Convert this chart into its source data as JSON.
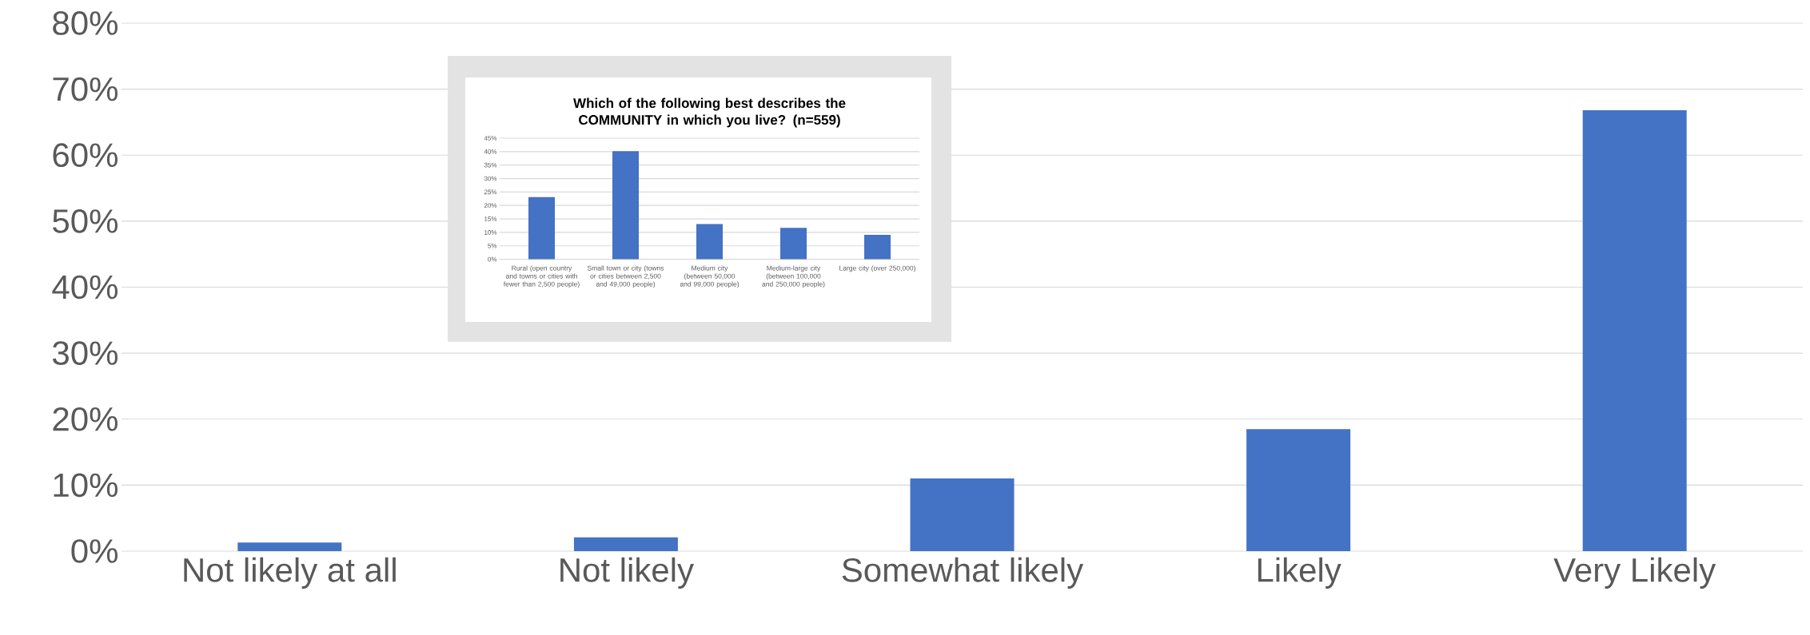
{
  "chart_data": [
    {
      "type": "bar",
      "categories": [
        "Not likely at all",
        "Not likely",
        "Somewhat likely",
        "Likely",
        "Very Likely"
      ],
      "values": [
        1.3,
        2.1,
        11.0,
        18.5,
        66.8
      ],
      "color": "#4472c4",
      "ylim": [
        0,
        80
      ],
      "yticks": [
        {
          "value": 0,
          "label": "0%"
        },
        {
          "value": 10,
          "label": "10%"
        },
        {
          "value": 20,
          "label": "20%"
        },
        {
          "value": 30,
          "label": "30%"
        },
        {
          "value": 40,
          "label": "40%"
        },
        {
          "value": 50,
          "label": "50%"
        },
        {
          "value": 60,
          "label": "60%"
        },
        {
          "value": 70,
          "label": "70%"
        },
        {
          "value": 80,
          "label": "80%"
        }
      ],
      "grid": "y"
    },
    {
      "type": "bar",
      "title": "Which of the following best describes the COMMUNITY in which you live? (n=559)",
      "categories": [
        "Rural (open country and towns or cities with fewer than 2,500 people)",
        "Small town or city (towns or cities between 2,500 and 49,000 people)",
        "Medium city (between 50,000 and 99,000 people)",
        "Medium-large city (between 100,000 and 250,000 people)",
        "Large city (over 250,000)"
      ],
      "values": [
        23.1,
        40.2,
        13.1,
        11.7,
        9.1
      ],
      "color": "#4472c4",
      "ylim": [
        0,
        45
      ],
      "yticks": [
        {
          "value": 0,
          "label": "0%"
        },
        {
          "value": 5,
          "label": "5%"
        },
        {
          "value": 10,
          "label": "10%"
        },
        {
          "value": 15,
          "label": "15%"
        },
        {
          "value": 20,
          "label": "20%"
        },
        {
          "value": 25,
          "label": "25%"
        },
        {
          "value": 30,
          "label": "30%"
        },
        {
          "value": 35,
          "label": "35%"
        },
        {
          "value": 40,
          "label": "40%"
        },
        {
          "value": 45,
          "label": "45%"
        }
      ],
      "grid": "y"
    }
  ]
}
